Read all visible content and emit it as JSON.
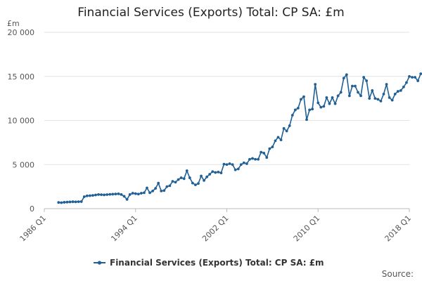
{
  "chart_data": {
    "type": "line",
    "title": "Financial Services (Exports) Total: CP SA: £m",
    "ylabel": "£m",
    "xlabel": "",
    "ylim": [
      0,
      20000
    ],
    "y_ticks": [
      0,
      5000,
      10000,
      15000,
      20000
    ],
    "y_tick_labels": [
      "0",
      "5 000",
      "10 000",
      "15 000",
      "20 000"
    ],
    "x_ticks": [
      "1986 Q1",
      "1994 Q1",
      "2002 Q1",
      "2010 Q1",
      "2018 Q1"
    ],
    "x_tick_years": [
      1986,
      1994,
      2002,
      2010,
      2018
    ],
    "x_range": [
      1986,
      2018
    ],
    "grid": "horizontal",
    "legend": "bottom",
    "source_label": "Source:",
    "color": "#206095",
    "series": [
      {
        "name": "Financial Services (Exports) Total: CP SA: £m",
        "points": [
          [
            1987.25,
            700
          ],
          [
            1987.5,
            680
          ],
          [
            1987.75,
            720
          ],
          [
            1988.0,
            740
          ],
          [
            1988.25,
            760
          ],
          [
            1988.5,
            780
          ],
          [
            1988.75,
            770
          ],
          [
            1989.0,
            790
          ],
          [
            1989.25,
            800
          ],
          [
            1989.5,
            1350
          ],
          [
            1989.75,
            1450
          ],
          [
            1990.0,
            1470
          ],
          [
            1990.25,
            1500
          ],
          [
            1990.5,
            1550
          ],
          [
            1990.75,
            1600
          ],
          [
            1991.0,
            1580
          ],
          [
            1991.25,
            1560
          ],
          [
            1991.5,
            1590
          ],
          [
            1991.75,
            1620
          ],
          [
            1992.0,
            1640
          ],
          [
            1992.25,
            1660
          ],
          [
            1992.5,
            1680
          ],
          [
            1992.75,
            1600
          ],
          [
            1993.0,
            1400
          ],
          [
            1993.25,
            1050
          ],
          [
            1993.5,
            1600
          ],
          [
            1993.75,
            1750
          ],
          [
            1994.0,
            1700
          ],
          [
            1994.25,
            1650
          ],
          [
            1994.5,
            1750
          ],
          [
            1994.75,
            1800
          ],
          [
            1995.0,
            2350
          ],
          [
            1995.25,
            1800
          ],
          [
            1995.5,
            2000
          ],
          [
            1995.75,
            2300
          ],
          [
            1996.0,
            2900
          ],
          [
            1996.25,
            2000
          ],
          [
            1996.5,
            2050
          ],
          [
            1996.75,
            2500
          ],
          [
            1997.0,
            2600
          ],
          [
            1997.25,
            3100
          ],
          [
            1997.5,
            3000
          ],
          [
            1997.75,
            3300
          ],
          [
            1998.0,
            3500
          ],
          [
            1998.25,
            3400
          ],
          [
            1998.5,
            4300
          ],
          [
            1998.75,
            3500
          ],
          [
            1999.0,
            2900
          ],
          [
            1999.25,
            2700
          ],
          [
            1999.5,
            2850
          ],
          [
            1999.75,
            3700
          ],
          [
            2000.0,
            3200
          ],
          [
            2000.25,
            3600
          ],
          [
            2000.5,
            3900
          ],
          [
            2000.75,
            4200
          ],
          [
            2001.0,
            4100
          ],
          [
            2001.25,
            4150
          ],
          [
            2001.5,
            4050
          ],
          [
            2001.75,
            5050
          ],
          [
            2002.0,
            5000
          ],
          [
            2002.25,
            5100
          ],
          [
            2002.5,
            5000
          ],
          [
            2002.75,
            4400
          ],
          [
            2003.0,
            4500
          ],
          [
            2003.25,
            5000
          ],
          [
            2003.5,
            5200
          ],
          [
            2003.75,
            5100
          ],
          [
            2004.0,
            5600
          ],
          [
            2004.25,
            5700
          ],
          [
            2004.5,
            5600
          ],
          [
            2004.75,
            5600
          ],
          [
            2005.0,
            6400
          ],
          [
            2005.25,
            6300
          ],
          [
            2005.5,
            5800
          ],
          [
            2005.75,
            6800
          ],
          [
            2006.0,
            7000
          ],
          [
            2006.25,
            7700
          ],
          [
            2006.5,
            8100
          ],
          [
            2006.75,
            7800
          ],
          [
            2007.0,
            9100
          ],
          [
            2007.25,
            8800
          ],
          [
            2007.5,
            9400
          ],
          [
            2007.75,
            10600
          ],
          [
            2008.0,
            11200
          ],
          [
            2008.25,
            11400
          ],
          [
            2008.5,
            12400
          ],
          [
            2008.75,
            12700
          ],
          [
            2009.0,
            10100
          ],
          [
            2009.25,
            11200
          ],
          [
            2009.5,
            11300
          ],
          [
            2009.75,
            14100
          ],
          [
            2010.0,
            12000
          ],
          [
            2010.25,
            11500
          ],
          [
            2010.5,
            11600
          ],
          [
            2010.75,
            12600
          ],
          [
            2011.0,
            11900
          ],
          [
            2011.25,
            12600
          ],
          [
            2011.5,
            11900
          ],
          [
            2011.75,
            12800
          ],
          [
            2012.0,
            13200
          ],
          [
            2012.25,
            14800
          ],
          [
            2012.5,
            15200
          ],
          [
            2012.75,
            12800
          ],
          [
            2013.0,
            13900
          ],
          [
            2013.25,
            13900
          ],
          [
            2013.5,
            13200
          ],
          [
            2013.75,
            12800
          ],
          [
            2014.0,
            14900
          ],
          [
            2014.25,
            14500
          ],
          [
            2014.5,
            12500
          ],
          [
            2014.75,
            13400
          ],
          [
            2015.0,
            12500
          ],
          [
            2015.25,
            12400
          ],
          [
            2015.5,
            12200
          ],
          [
            2015.75,
            13000
          ],
          [
            2016.0,
            14100
          ],
          [
            2016.25,
            12600
          ],
          [
            2016.5,
            12300
          ],
          [
            2016.75,
            13000
          ],
          [
            2017.0,
            13300
          ],
          [
            2017.25,
            13400
          ],
          [
            2017.5,
            13800
          ],
          [
            2017.75,
            14300
          ],
          [
            2018.0,
            15000
          ],
          [
            2018.25,
            14900
          ],
          [
            2018.5,
            14900
          ],
          [
            2018.75,
            14500
          ],
          [
            2019.0,
            15300
          ],
          [
            2019.25,
            15200
          ]
        ]
      }
    ]
  }
}
